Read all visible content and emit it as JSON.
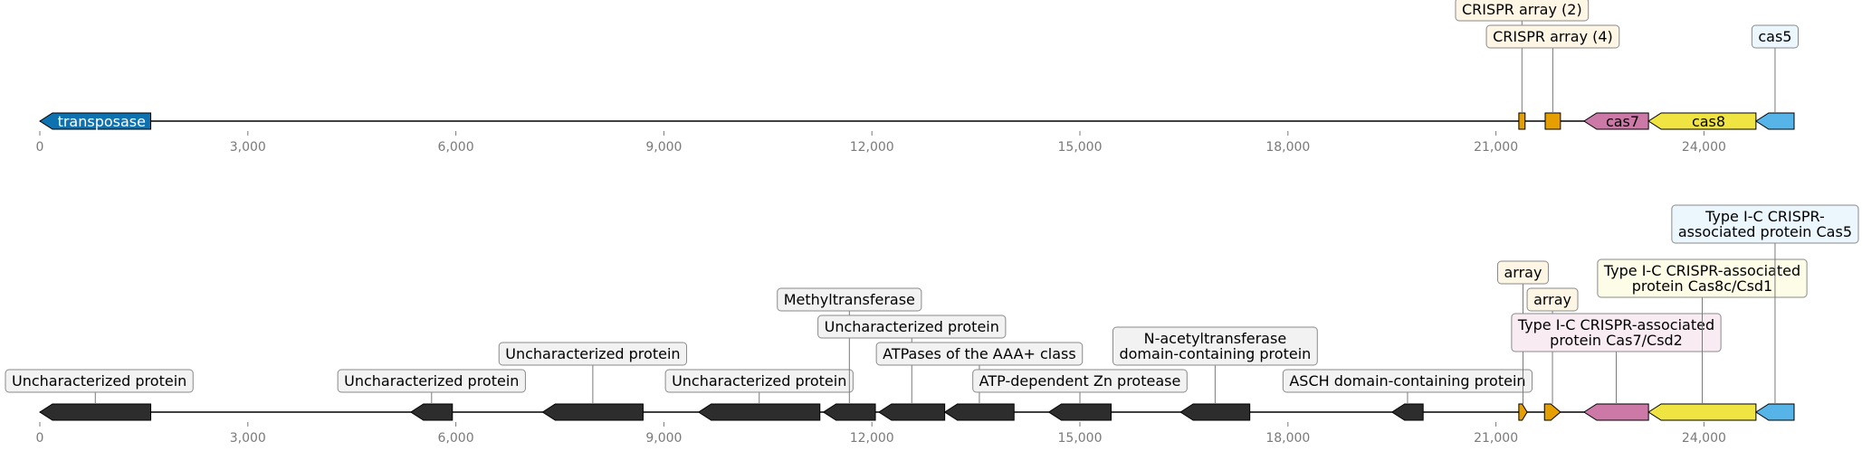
{
  "scale": {
    "min": 0,
    "max": 25300,
    "ticks": [
      0,
      3000,
      6000,
      9000,
      12000,
      15000,
      18000,
      21000,
      24000
    ]
  },
  "tick_labels": [
    "0",
    "3,000",
    "6,000",
    "9,000",
    "12,000",
    "15,000",
    "18,000",
    "21,000",
    "24,000"
  ],
  "colors": {
    "backbone": "#000000",
    "tick_text": "#7a7a7a",
    "transposase": "#0f72b0",
    "cas7": "#cc79a7",
    "cas8": "#f0e442",
    "cas5": "#56b4e9",
    "crispr": "#e69f00",
    "uncharacterized": "#2d2d2d",
    "label_box_default": "#f2f2f2",
    "label_box_crispr": "#fdf6e5",
    "label_box_cas7": "#f9ebf2",
    "label_box_cas8": "#fdfce6",
    "label_box_cas5": "#ebf6fd"
  },
  "tracks": [
    {
      "id": "top",
      "features": [
        {
          "start": 0,
          "end": 1600,
          "strand": -1,
          "color": "#0f72b0",
          "label": "transposase",
          "label_inside": true,
          "text_color": "#ffffff"
        },
        {
          "start": 21330,
          "end": 21420,
          "strand": 0,
          "color": "#e69f00",
          "label": "CRISPR array (2)",
          "label_level": 3,
          "box": "#fdf6e5"
        },
        {
          "start": 21710,
          "end": 21930,
          "strand": 0,
          "color": "#e69f00",
          "label": "CRISPR array (4)",
          "label_level": 2,
          "box": "#fdf6e5"
        },
        {
          "start": 22270,
          "end": 23200,
          "strand": -1,
          "color": "#cc79a7",
          "label": "cas7",
          "label_inside": true,
          "text_color": "#000000"
        },
        {
          "start": 23200,
          "end": 24750,
          "strand": -1,
          "color": "#f0e442",
          "label": "cas8",
          "label_inside": true,
          "text_color": "#000000"
        },
        {
          "start": 24750,
          "end": 25300,
          "strand": -1,
          "color": "#56b4e9",
          "label": "cas5",
          "label_level": 2,
          "box": "#ebf6fd"
        }
      ]
    },
    {
      "id": "bottom",
      "features": [
        {
          "start": 0,
          "end": 1600,
          "strand": -1,
          "color": "#2d2d2d",
          "label": "Uncharacterized protein",
          "label_level": 1,
          "box": "#f2f2f2"
        },
        {
          "start": 5350,
          "end": 5950,
          "strand": -1,
          "color": "#2d2d2d",
          "label": "Uncharacterized protein",
          "label_level": 1,
          "box": "#f2f2f2"
        },
        {
          "start": 7250,
          "end": 8700,
          "strand": -1,
          "color": "#2d2d2d",
          "label": "Uncharacterized protein",
          "label_level": 2,
          "box": "#f2f2f2"
        },
        {
          "start": 9500,
          "end": 11250,
          "strand": -1,
          "color": "#2d2d2d",
          "label": "Uncharacterized protein",
          "label_level": 1,
          "box": "#f2f2f2"
        },
        {
          "start": 11300,
          "end": 12050,
          "strand": -1,
          "color": "#2d2d2d",
          "label": "Methyltransferase",
          "label_level": 4,
          "box": "#f2f2f2"
        },
        {
          "start": 12100,
          "end": 13050,
          "strand": -1,
          "color": "#2d2d2d",
          "label": "Uncharacterized protein",
          "label_level": 3,
          "box": "#f2f2f2"
        },
        {
          "start": 13050,
          "end": 14050,
          "strand": -1,
          "color": "#2d2d2d",
          "label": "ATPases of the AAA+ class",
          "label_level": 2,
          "box": "#f2f2f2"
        },
        {
          "start": 14550,
          "end": 15450,
          "strand": -1,
          "color": "#2d2d2d",
          "label": "ATP-dependent Zn protease",
          "label_level": 1,
          "box": "#f2f2f2"
        },
        {
          "start": 16450,
          "end": 17450,
          "strand": -1,
          "color": "#2d2d2d",
          "label": "N-acetyltransferase domain-containing protein",
          "lines": [
            "N-acetyltransferase",
            "domain-containing protein"
          ],
          "label_level": 2,
          "box": "#f2f2f2"
        },
        {
          "start": 19500,
          "end": 19950,
          "strand": -1,
          "color": "#2d2d2d",
          "label": "ASCH domain-containing protein",
          "label_level": 1,
          "box": "#f2f2f2"
        },
        {
          "start": 21330,
          "end": 21450,
          "strand": 1,
          "color": "#e69f00",
          "label": "array",
          "label_level": 5,
          "box": "#fdf6e5"
        },
        {
          "start": 21700,
          "end": 21930,
          "strand": 1,
          "color": "#e69f00",
          "label": "array",
          "label_level": 4,
          "box": "#fdf6e5"
        },
        {
          "start": 22270,
          "end": 23200,
          "strand": -1,
          "color": "#cc79a7",
          "label": "Type I-C CRISPR-associated protein Cas7/Csd2",
          "lines": [
            "Type I-C CRISPR-associated",
            "protein Cas7/Csd2"
          ],
          "label_level": 2.5,
          "box": "#f9ebf2"
        },
        {
          "start": 23200,
          "end": 24750,
          "strand": -1,
          "color": "#f0e442",
          "label": "Type I-C CRISPR-associated protein Cas8c/Csd1",
          "lines": [
            "Type I-C CRISPR-associated",
            "protein Cas8c/Csd1"
          ],
          "label_level": 4.5,
          "box": "#fdfce6"
        },
        {
          "start": 24750,
          "end": 25300,
          "strand": -1,
          "color": "#56b4e9",
          "label": "Type I-C CRISPR-associated protein Cas5",
          "lines": [
            "Type I-C CRISPR-",
            "associated protein Cas5"
          ],
          "label_level": 6.5,
          "box": "#ebf6fd"
        }
      ]
    }
  ]
}
